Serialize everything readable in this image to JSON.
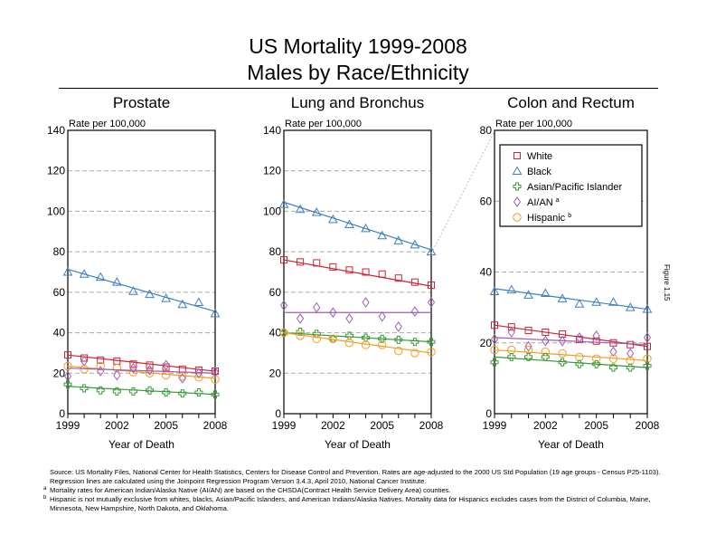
{
  "title_line1": "US Mortality 1999-2008",
  "title_line2": "Males by Race/Ethnicity",
  "figure_label": "Figure 1.15",
  "footnotes": {
    "source": "Source:  US Mortality Files, National Center for Health Statistics, Centers for Disease Control and Prevention.  Rates are age-adjusted to the 2000 US Std Population (19 age groups - Census P25-1103).  Regression lines are calculated using the Joinpoint Regression Program Version 3.4.3, April 2010, National Cancer Institute.",
    "a_mark": "a",
    "a": "Mortality rates for American Indian/Alaska Native (AI/AN) are based on the CHSDA(Contract Health Service Delivery Area) counties.",
    "b_mark": "b",
    "b": "Hispanic is not mutually exclusive from whites, blacks, Asian/Pacific Islanders, and American Indians/Alaska Natives.  Mortality data for Hispanics excludes cases from the District of Columbia, Maine, Minnesota, New Hampshire, North Dakota, and Oklahoma."
  },
  "colors": {
    "White": "#cc2233",
    "Black": "#3d7fc1",
    "Asian/Pacific Islander": "#3a9a3a",
    "AI/AN": "#9b5fb5",
    "Hispanic": "#f39c1f"
  },
  "legend": [
    {
      "name": "White",
      "marker": "square",
      "sup": ""
    },
    {
      "name": "Black",
      "marker": "triangle",
      "sup": ""
    },
    {
      "name": "Asian/Pacific Islander",
      "marker": "plus",
      "sup": ""
    },
    {
      "name": "AI/AN",
      "marker": "diamond",
      "sup": "a"
    },
    {
      "name": "Hispanic",
      "marker": "circle",
      "sup": "b"
    }
  ],
  "chart_data": [
    {
      "type": "line",
      "title": "Prostate",
      "xlabel": "Year of Death",
      "ylabel": "Rate per 100,000",
      "ylim": [
        0,
        140
      ],
      "yticks": [
        0,
        20,
        40,
        60,
        80,
        100,
        120,
        140
      ],
      "xlim": [
        1999,
        2008
      ],
      "xticklabels": [
        1999,
        2002,
        2005,
        2008
      ],
      "x": [
        1999,
        2000,
        2001,
        2002,
        2003,
        2004,
        2005,
        2006,
        2007,
        2008
      ],
      "series": [
        {
          "name": "Black",
          "values": [
            70,
            69,
            67.5,
            65,
            60.5,
            59,
            57,
            54,
            55,
            49.5
          ],
          "trend": [
            71.3,
            50.5
          ]
        },
        {
          "name": "White",
          "values": [
            29,
            27.5,
            26.5,
            26,
            24.5,
            24,
            23,
            22,
            21.5,
            21
          ],
          "trend": [
            29,
            21
          ]
        },
        {
          "name": "Hispanic",
          "values": [
            23.5,
            22,
            23.5,
            22.5,
            20.5,
            20,
            19,
            18.5,
            18,
            17
          ],
          "trend": [
            23.5,
            17.5
          ]
        },
        {
          "name": "AI/AN",
          "values": [
            18.5,
            26,
            21,
            19,
            22.5,
            21.5,
            24,
            17.5,
            20,
            20.5
          ],
          "trend": [
            22.5,
            20
          ]
        },
        {
          "name": "Asian/Pacific Islander",
          "values": [
            14.5,
            12.5,
            11.5,
            11,
            11,
            11.5,
            10.5,
            10,
            10.5,
            9.5
          ],
          "trend": [
            13.5,
            9.5
          ]
        }
      ]
    },
    {
      "type": "line",
      "title": "Lung and Bronchus",
      "xlabel": "Year of Death",
      "ylabel": "Rate per 100,000",
      "ylim": [
        0,
        140
      ],
      "yticks": [
        0,
        20,
        40,
        60,
        80,
        100,
        120,
        140
      ],
      "xlim": [
        1999,
        2008
      ],
      "xticklabels": [
        1999,
        2002,
        2005,
        2008
      ],
      "x": [
        1999,
        2000,
        2001,
        2002,
        2003,
        2004,
        2005,
        2006,
        2007,
        2008
      ],
      "series": [
        {
          "name": "Black",
          "values": [
            103.5,
            101,
            99.5,
            96,
            93.5,
            91.5,
            88,
            85.5,
            83.5,
            80
          ],
          "trend": [
            104.5,
            81
          ]
        },
        {
          "name": "White",
          "values": [
            76,
            75,
            74.5,
            72.5,
            71,
            70,
            69,
            67,
            65,
            63.5
          ],
          "trend": [
            76,
            63
          ]
        },
        {
          "name": "AI/AN",
          "values": [
            53.5,
            47,
            52.5,
            50,
            47,
            55,
            48,
            43,
            50.5,
            55
          ],
          "trend": [
            50,
            50
          ]
        },
        {
          "name": "Asian/Pacific Islander",
          "values": [
            40,
            40.5,
            39.5,
            37,
            38.5,
            37.5,
            37,
            36.5,
            35.5,
            35.5
          ],
          "trend": [
            40,
            35.5
          ]
        },
        {
          "name": "Hispanic",
          "values": [
            40,
            38.5,
            37,
            37,
            35,
            34,
            34,
            31,
            30,
            30.5
          ],
          "trend": [
            40,
            30
          ]
        }
      ]
    },
    {
      "type": "line",
      "title": "Colon and Rectum",
      "xlabel": "Year of Death",
      "ylabel": "Rate per 100,000",
      "ylim": [
        0,
        80
      ],
      "yticks": [
        0,
        20,
        40,
        60,
        80
      ],
      "xlim": [
        1999,
        2008
      ],
      "xticklabels": [
        1999,
        2002,
        2005,
        2008
      ],
      "x": [
        1999,
        2000,
        2001,
        2002,
        2003,
        2004,
        2005,
        2006,
        2007,
        2008
      ],
      "legend_position": "top",
      "series": [
        {
          "name": "Black",
          "values": [
            34.5,
            35,
            33.5,
            34,
            32.5,
            31,
            31.5,
            31.5,
            30,
            29.5
          ],
          "trend": [
            35.3,
            29.5
          ]
        },
        {
          "name": "White",
          "values": [
            25,
            24.5,
            23.5,
            23,
            22.5,
            21,
            20.5,
            20,
            19.5,
            19
          ],
          "trend": [
            25,
            19
          ]
        },
        {
          "name": "AI/AN",
          "values": [
            21,
            23,
            19,
            20.5,
            20.5,
            21.5,
            22,
            17.5,
            17,
            21.5
          ],
          "trend": [
            21.5,
            19.5
          ]
        },
        {
          "name": "Hispanic",
          "values": [
            18,
            18,
            18,
            17.5,
            17,
            16,
            15.5,
            15.5,
            15,
            15.5
          ],
          "trend": [
            18,
            15
          ]
        },
        {
          "name": "Asian/Pacific Islander",
          "values": [
            14.5,
            16,
            16,
            16,
            14.5,
            14,
            14,
            13,
            13,
            13.5
          ],
          "trend": [
            16,
            13
          ]
        }
      ]
    }
  ]
}
